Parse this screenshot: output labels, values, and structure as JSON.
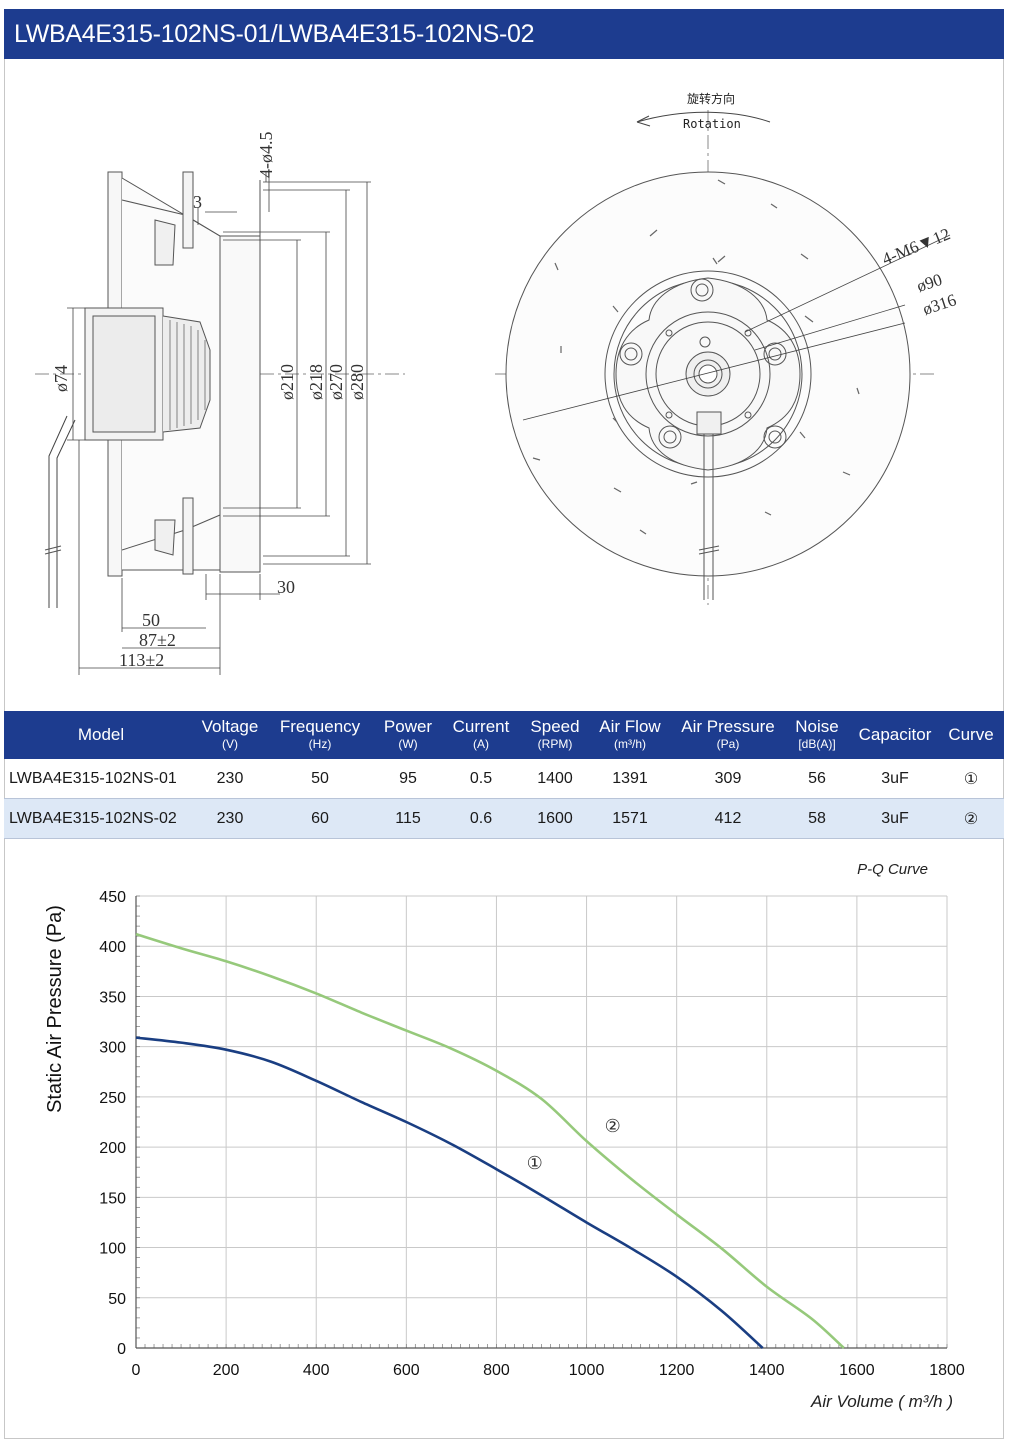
{
  "header": {
    "title": "LWBA4E315-102NS-01/LWBA4E315-102NS-02"
  },
  "drawing": {
    "rotation_cn": "旋转方向",
    "rotation_en": "Rotation",
    "dims_side": [
      "4-ø4.5",
      "3",
      "ø74",
      "ø210",
      "ø218",
      "ø270",
      "ø280",
      "30",
      "50",
      "87±2",
      "113±2"
    ],
    "dims_front": [
      "4-M6▼12",
      "ø90",
      "ø316"
    ]
  },
  "specs": {
    "headers": [
      {
        "label": "Model",
        "unit": ""
      },
      {
        "label": "Voltage",
        "unit": "(V)"
      },
      {
        "label": "Frequency",
        "unit": "(Hz)"
      },
      {
        "label": "Power",
        "unit": "(W)"
      },
      {
        "label": "Current",
        "unit": "(A)"
      },
      {
        "label": "Speed",
        "unit": "(RPM)"
      },
      {
        "label": "Air Flow",
        "unit": "(m³/h)"
      },
      {
        "label": "Air Pressure",
        "unit": "(Pa)"
      },
      {
        "label": "Noise",
        "unit": "[dB(A)]"
      },
      {
        "label": "Capacitor",
        "unit": ""
      },
      {
        "label": "Curve",
        "unit": ""
      }
    ],
    "rows": [
      [
        "LWBA4E315-102NS-01",
        "230",
        "50",
        "95",
        "0.5",
        "1400",
        "1391",
        "309",
        "56",
        "3uF",
        "①"
      ],
      [
        "LWBA4E315-102NS-02",
        "230",
        "60",
        "115",
        "0.6",
        "1600",
        "1571",
        "412",
        "58",
        "3uF",
        "②"
      ]
    ]
  },
  "chart_data": {
    "type": "line",
    "title": "P-Q Curve",
    "xlabel": "Air Volume ( m³/h )",
    "ylabel": "Static Air Pressure  (Pa)",
    "xlim": [
      0,
      1800
    ],
    "ylim": [
      0,
      450
    ],
    "xticks": [
      0,
      200,
      400,
      600,
      800,
      1000,
      1200,
      1400,
      1600,
      1800
    ],
    "yticks": [
      0,
      50,
      100,
      150,
      200,
      250,
      300,
      350,
      400,
      450
    ],
    "grid": true,
    "series": [
      {
        "name": "①",
        "color": "#1a3e82",
        "x": [
          0,
          100,
          200,
          300,
          400,
          500,
          600,
          700,
          800,
          900,
          1000,
          1100,
          1200,
          1300,
          1391
        ],
        "y": [
          309,
          304,
          297,
          285,
          266,
          245,
          225,
          203,
          178,
          152,
          125,
          99,
          71,
          37,
          0
        ]
      },
      {
        "name": "②",
        "color": "#96c97b",
        "x": [
          0,
          100,
          200,
          300,
          400,
          500,
          600,
          700,
          800,
          900,
          1000,
          1100,
          1200,
          1300,
          1400,
          1500,
          1571
        ],
        "y": [
          412,
          398,
          385,
          370,
          353,
          334,
          316,
          298,
          276,
          248,
          206,
          168,
          133,
          99,
          61,
          29,
          0
        ]
      }
    ],
    "annotations": [
      {
        "text": "①",
        "x": 885,
        "y": 178
      },
      {
        "text": "②",
        "x": 1058,
        "y": 215
      }
    ]
  }
}
